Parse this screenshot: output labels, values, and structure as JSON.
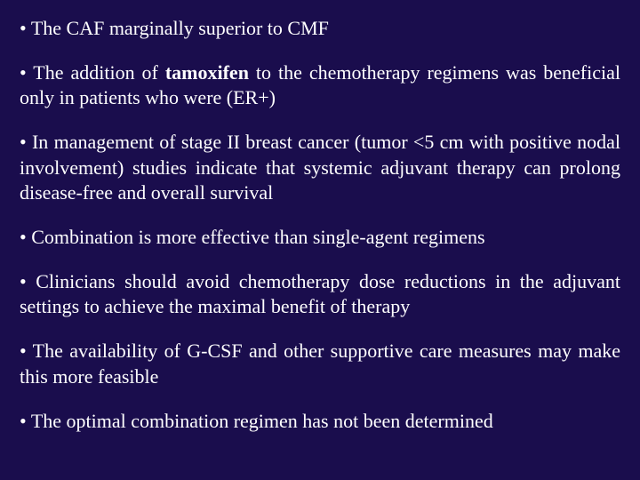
{
  "slide": {
    "background_color": "#1a0d4d",
    "text_color": "#ffffff",
    "font_family": "Times New Roman",
    "base_font_size_pt": 17,
    "bullets": [
      {
        "prefix": "• ",
        "text_before": "The CAF marginally superior to CMF",
        "bold": "",
        "text_after": ""
      },
      {
        "prefix": "• ",
        "text_before": "The addition of ",
        "bold": "tamoxifen",
        "text_after": " to the chemotherapy regimens was beneficial only in patients who were (ER+)"
      },
      {
        "prefix": "• ",
        "text_before": "In management of stage II breast cancer (tumor <5 cm with positive nodal involvement) studies indicate that systemic adjuvant therapy can prolong disease-free and overall survival",
        "bold": "",
        "text_after": ""
      },
      {
        "prefix": "• ",
        "text_before": "Combination is more effective than single-agent regimens",
        "bold": "",
        "text_after": ""
      },
      {
        "prefix": "• ",
        "text_before": "Clinicians should avoid chemotherapy dose reductions in the adjuvant settings to achieve the maximal benefit of therapy",
        "bold": "",
        "text_after": ""
      },
      {
        "prefix": "• ",
        "text_before": "The availability of G-CSF and other supportive care measures may make this more feasible",
        "bold": "",
        "text_after": ""
      },
      {
        "prefix": "• ",
        "text_before": "The optimal combination regimen has not been determined",
        "bold": "",
        "text_after": ""
      }
    ]
  }
}
